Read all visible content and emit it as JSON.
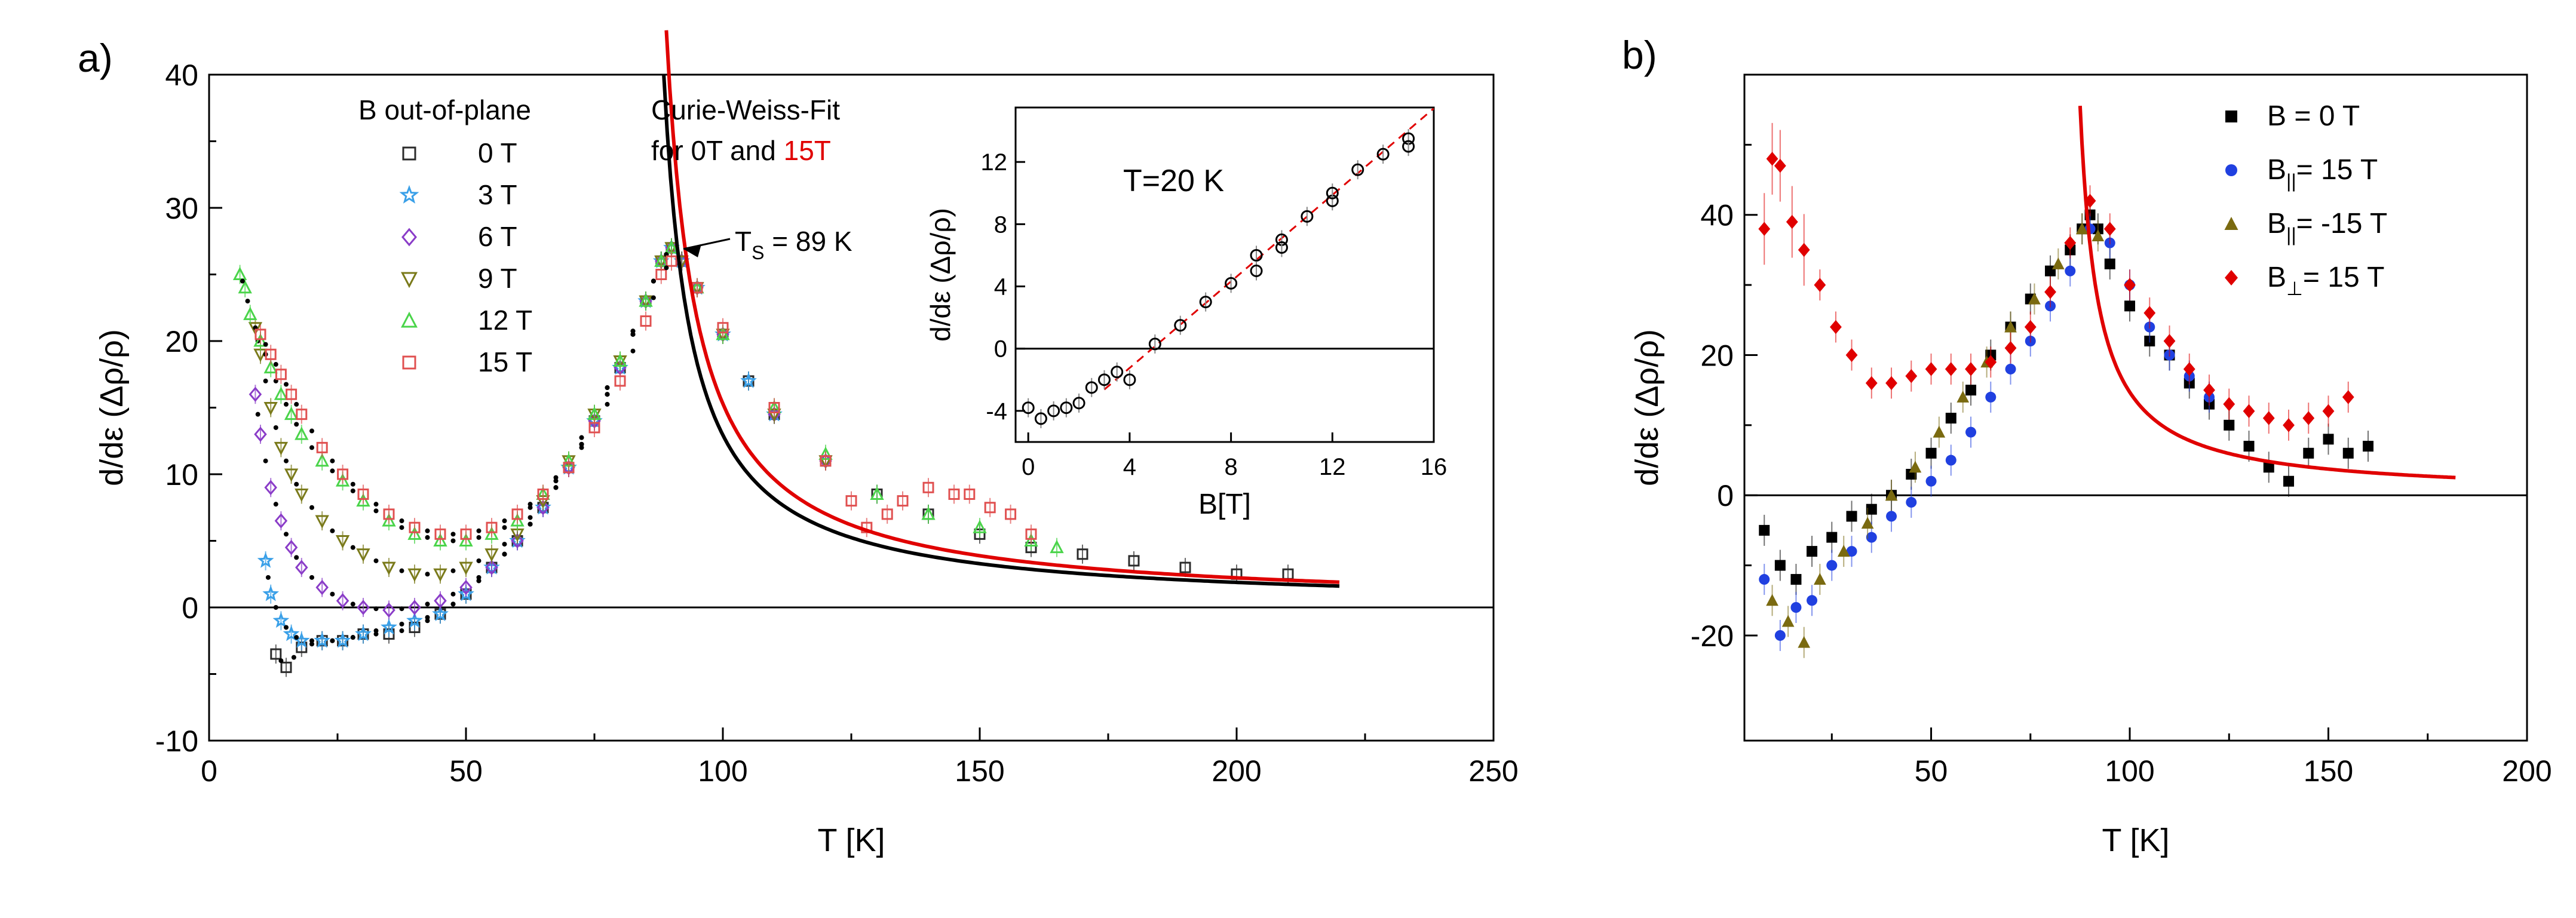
{
  "panels": {
    "a": {
      "label": "a)"
    },
    "b": {
      "label": "b)"
    }
  },
  "chart_data": [
    {
      "id": "panel-a",
      "type": "scatter",
      "xlabel": "T [K]",
      "ylabel": "d/dε (Δρ/ρ)",
      "xlim": [
        0,
        250
      ],
      "ylim": [
        -10,
        40
      ],
      "xticks": [
        0,
        50,
        100,
        150,
        200,
        250
      ],
      "yticks": [
        -10,
        0,
        10,
        20,
        30,
        40
      ],
      "grid": false,
      "legend_title": "B out-of-plane",
      "legend_position": "top-left",
      "annotations": {
        "fit_line1": "Curie-Weiss-Fit",
        "fit_line2_prefix": "for 0T and ",
        "fit_line2_red": "15T",
        "ts_label": "T",
        "ts_sub": "S",
        "ts_value": " = 89 K",
        "ts_point": [
          90,
          27
        ]
      },
      "colors": {
        "0 T": "#2b2b2b",
        "3 T": "#3aa0e8",
        "6 T": "#8a3cc8",
        "9 T": "#7a7a1a",
        "12 T": "#4ad44a",
        "15 T": "#e05050",
        "fit_0T": "#000000",
        "fit_15T": "#e00000"
      },
      "series": [
        {
          "name": "0 T",
          "marker": "square",
          "x": [
            13,
            15,
            18,
            22,
            26,
            30,
            35,
            40,
            45,
            50,
            55,
            60,
            65,
            70,
            75,
            80,
            85,
            88,
            90,
            92,
            95,
            100,
            105,
            110,
            120,
            130,
            140,
            150,
            160,
            170,
            180,
            190,
            200,
            210
          ],
          "y": [
            -3.5,
            -4.5,
            -3,
            -2.5,
            -2.5,
            -2,
            -2,
            -1.5,
            -0.5,
            1,
            3,
            5,
            7.5,
            10.5,
            14,
            18,
            23,
            26,
            27,
            26,
            24,
            20.5,
            17,
            14.5,
            11,
            8.5,
            7,
            5.5,
            4.5,
            4,
            3.5,
            3,
            2.5,
            2.5
          ]
        },
        {
          "name": "3 T",
          "marker": "star",
          "x": [
            11,
            12,
            14,
            16,
            18,
            22,
            26,
            30,
            35,
            40,
            45,
            50,
            55,
            60,
            65,
            70,
            75,
            80,
            85,
            88,
            90,
            92,
            95,
            100,
            105,
            110
          ],
          "y": [
            3.5,
            1,
            -1,
            -2,
            -2.5,
            -2.5,
            -2.5,
            -2,
            -1.5,
            -1,
            -0.5,
            1,
            3,
            5,
            7.5,
            10.5,
            14,
            18,
            23,
            26,
            27,
            26,
            24,
            20.5,
            17,
            14.5
          ]
        },
        {
          "name": "6 T",
          "marker": "diamond",
          "x": [
            9,
            10,
            12,
            14,
            16,
            18,
            22,
            26,
            30,
            35,
            40,
            45,
            50,
            55,
            60,
            65,
            70,
            75,
            80,
            85,
            88,
            90,
            92,
            95,
            100,
            110,
            120
          ],
          "y": [
            16,
            13,
            9,
            6.5,
            4.5,
            3,
            1.5,
            0.5,
            0,
            -0.2,
            0,
            0.5,
            1.5,
            3,
            5,
            7.5,
            10.5,
            14,
            18,
            23,
            26,
            27,
            26,
            24,
            20.5,
            14.5,
            11
          ]
        },
        {
          "name": "9 T",
          "marker": "triangle-down",
          "x": [
            9,
            10,
            12,
            14,
            16,
            18,
            22,
            26,
            30,
            35,
            40,
            45,
            50,
            55,
            60,
            65,
            70,
            75,
            80,
            85,
            88,
            90,
            92,
            95,
            100,
            110,
            120
          ],
          "y": [
            21,
            19,
            15,
            12,
            10,
            8.5,
            6.5,
            5,
            4,
            3,
            2.5,
            2.5,
            3,
            4,
            5.5,
            8,
            11,
            14.5,
            18.5,
            23,
            26,
            27,
            26,
            24,
            20.5,
            14.5,
            11
          ]
        },
        {
          "name": "12 T",
          "marker": "triangle-up",
          "x": [
            6,
            7,
            8,
            10,
            12,
            14,
            16,
            18,
            22,
            26,
            30,
            35,
            40,
            45,
            50,
            55,
            60,
            65,
            70,
            75,
            80,
            85,
            88,
            90,
            95,
            100,
            110,
            120,
            130,
            140,
            150,
            160,
            165
          ],
          "y": [
            25,
            24,
            22,
            20,
            18,
            16,
            14.5,
            13,
            11,
            9.5,
            8,
            6.5,
            5.5,
            5,
            5,
            5.5,
            6.5,
            8.5,
            11,
            14.5,
            18.5,
            23,
            26,
            27,
            24,
            20.5,
            15,
            11.5,
            8.5,
            7,
            6,
            5,
            4.5
          ]
        },
        {
          "name": "15 T",
          "marker": "square",
          "x": [
            10,
            12,
            14,
            16,
            18,
            22,
            26,
            30,
            35,
            40,
            45,
            50,
            55,
            60,
            65,
            70,
            75,
            80,
            85,
            88,
            90,
            95,
            100,
            110,
            120,
            125,
            128,
            132,
            135,
            140,
            145,
            148,
            152,
            156,
            160
          ],
          "y": [
            20.5,
            19,
            17.5,
            16,
            14.5,
            12,
            10,
            8.5,
            7,
            6,
            5.5,
            5.5,
            6,
            7,
            8.5,
            10.5,
            13.5,
            17,
            21.5,
            25,
            26,
            24,
            21,
            15,
            11,
            8,
            6,
            7,
            8,
            9,
            8.5,
            8.5,
            7.5,
            7,
            5.5
          ]
        }
      ],
      "fits": [
        {
          "name": "Curie-Weiss-Fit 0T",
          "curve": "C/(T-Tc)",
          "C": 220,
          "Tc": 83,
          "xrange": [
            88.5,
            220
          ]
        },
        {
          "name": "Curie-Weiss-Fit 15T",
          "curve": "C/(T-Tc)",
          "C": 260,
          "Tc": 83,
          "xrange": [
            89,
            220
          ]
        }
      ],
      "inset": {
        "type": "scatter",
        "xlabel": "B[T]",
        "ylabel": "d/dε (Δρ/ρ)",
        "label": "T=20 K",
        "xlim": [
          -0.5,
          16
        ],
        "ylim": [
          -6,
          15.5
        ],
        "xticks": [
          0,
          4,
          8,
          12,
          16
        ],
        "yticks": [
          -4,
          0,
          4,
          8,
          12
        ],
        "x": [
          0,
          0.5,
          1,
          1.5,
          2,
          2.5,
          3,
          3.5,
          4,
          5,
          6,
          7,
          8,
          9,
          9,
          10,
          10,
          11,
          12,
          12,
          13,
          14,
          15,
          15
        ],
        "y": [
          -3.8,
          -4.5,
          -4,
          -3.8,
          -3.5,
          -2.5,
          -2,
          -1.5,
          -2,
          0.3,
          1.5,
          3,
          4.2,
          6,
          5,
          7,
          6.5,
          8.5,
          9.5,
          10,
          11.5,
          12.5,
          13.5,
          13
        ],
        "fit": {
          "type": "linear",
          "slope": 1.39,
          "intercept": -6.8,
          "xrange": [
            3,
            16
          ]
        }
      }
    },
    {
      "id": "panel-b",
      "type": "scatter",
      "xlabel": "T [K]",
      "ylabel": "d/dε (Δρ/ρ)",
      "xlim": [
        3,
        200
      ],
      "ylim": [
        -35,
        60
      ],
      "xticks": [
        50,
        100,
        150,
        200
      ],
      "yticks": [
        -20,
        0,
        20,
        40
      ],
      "grid": false,
      "legend_position": "top-right",
      "colors": {
        "B = 0 T": "#000000",
        "B_par = 15 T": "#2040e0",
        "B_par = -15 T": "#7a6a10",
        "B_perp = 15 T": "#e00000",
        "fit": "#e00000"
      },
      "legend": [
        {
          "key": "b0",
          "base": "B",
          "sub": "",
          "rest": " = 0 T"
        },
        {
          "key": "bpar",
          "base": "B",
          "sub": "||",
          "rest": "= 15 T"
        },
        {
          "key": "bparneg",
          "base": "B",
          "sub": "||",
          "rest": "= -15 T"
        },
        {
          "key": "bperp",
          "base": "B",
          "sub": "⊥",
          "rest": "= 15 T"
        }
      ],
      "series": [
        {
          "name": "B = 0 T",
          "marker": "square",
          "x": [
            8,
            12,
            16,
            20,
            25,
            30,
            35,
            40,
            45,
            50,
            55,
            60,
            65,
            70,
            75,
            80,
            85,
            88,
            90,
            92,
            95,
            100,
            105,
            110,
            115,
            120,
            125,
            130,
            135,
            140,
            145,
            150,
            155,
            160
          ],
          "y": [
            -5,
            -10,
            -12,
            -8,
            -6,
            -3,
            -2,
            0,
            3,
            6,
            11,
            15,
            20,
            24,
            28,
            32,
            35,
            38,
            40,
            38,
            33,
            27,
            22,
            20,
            16,
            13,
            10,
            7,
            4,
            2,
            6,
            8,
            6,
            7
          ]
        },
        {
          "name": "B|| = 15 T",
          "marker": "circle",
          "x": [
            8,
            12,
            16,
            20,
            25,
            30,
            35,
            40,
            45,
            50,
            55,
            60,
            65,
            70,
            75,
            80,
            85,
            90,
            95,
            100,
            105,
            110,
            115,
            120
          ],
          "y": [
            -12,
            -20,
            -16,
            -15,
            -10,
            -8,
            -6,
            -3,
            -1,
            2,
            5,
            9,
            14,
            18,
            22,
            27,
            32,
            38,
            36,
            30,
            24,
            20,
            17,
            14
          ]
        },
        {
          "name": "B|| = -15 T",
          "marker": "triangle-up",
          "x": [
            10,
            14,
            18,
            22,
            28,
            34,
            40,
            46,
            52,
            58,
            64,
            70,
            76,
            82,
            88,
            92
          ],
          "y": [
            -15,
            -18,
            -21,
            -12,
            -8,
            -4,
            0,
            4,
            9,
            14,
            19,
            24,
            28,
            33,
            38,
            37
          ]
        },
        {
          "name": "B⊥ = 15 T",
          "marker": "diamond",
          "x": [
            8,
            10,
            12,
            15,
            18,
            22,
            26,
            30,
            35,
            40,
            45,
            50,
            55,
            60,
            65,
            70,
            75,
            80,
            85,
            90,
            95,
            100,
            105,
            110,
            115,
            120,
            125,
            130,
            135,
            140,
            145,
            150,
            155
          ],
          "y": [
            38,
            48,
            47,
            39,
            35,
            30,
            24,
            20,
            16,
            16,
            17,
            18,
            18,
            18,
            19,
            21,
            24,
            29,
            36,
            42,
            38,
            30,
            26,
            22,
            18,
            15,
            13,
            12,
            11,
            10,
            11,
            12,
            14
          ]
        }
      ],
      "fit": {
        "name": "Curie-Weiss fit",
        "curve": "C/(T-Tc)",
        "C": 250,
        "Tc": 83,
        "xrange": [
          87.5,
          182
        ]
      }
    }
  ]
}
